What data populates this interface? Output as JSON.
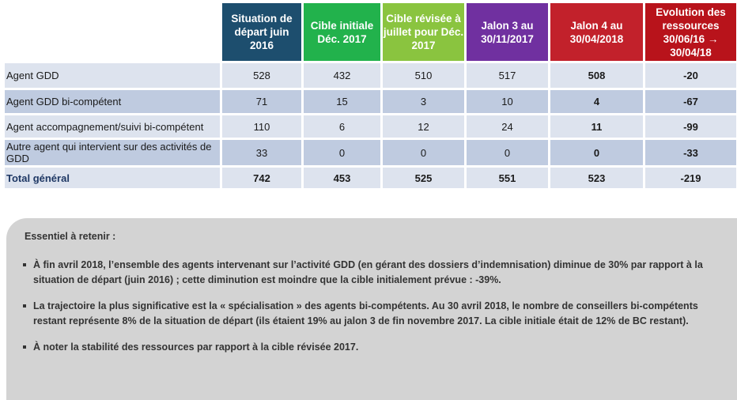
{
  "table": {
    "headers": [
      {
        "label": "Situation de départ juin 2016",
        "color": "#1d4e6e"
      },
      {
        "label": "Cible initiale Déc. 2017",
        "color": "#22b24c"
      },
      {
        "label": "Cible révisée à juillet pour Déc. 2017",
        "color": "#8ac43f"
      },
      {
        "label": "Jalon 3 au 30/11/2017",
        "color": "#7030a0"
      },
      {
        "label": "Jalon 4 au 30/04/2018",
        "color": "#c2212b"
      },
      {
        "label": "Evolution des ressources 30/06/16 → 30/04/18",
        "color": "#b8131b"
      }
    ],
    "rows": [
      {
        "label": "Agent GDD",
        "values": [
          "528",
          "432",
          "510",
          "517",
          "508",
          "-20"
        ]
      },
      {
        "label": "Agent GDD bi-compétent",
        "values": [
          "71",
          "15",
          "3",
          "10",
          "4",
          "-67"
        ]
      },
      {
        "label": "Agent accompagnement/suivi bi-compétent",
        "values": [
          "110",
          "6",
          "12",
          "24",
          "11",
          "-99"
        ]
      },
      {
        "label": "Autre agent qui intervient sur des activités de GDD",
        "values": [
          "33",
          "0",
          "0",
          "0",
          "0",
          "-33"
        ]
      },
      {
        "label": "Total général",
        "values": [
          "742",
          "453",
          "525",
          "551",
          "523",
          "-219"
        ]
      }
    ]
  },
  "summary": {
    "title": "Essentiel à retenir :",
    "bullets": [
      "À fin avril 2018, l’ensemble des agents intervenant sur l’activité GDD (en gérant des dossiers d’indemnisation) diminue de 30% par rapport à la situation de départ (juin 2016) ; cette diminution est moindre que la cible initialement prévue : -39%.",
      "La trajectoire la plus significative est la « spécialisation » des agents bi-compétents. Au 30 avril 2018, le nombre de conseillers bi-compétents restant représente 8% de la situation de départ (ils étaient 19% au jalon 3 de fin novembre 2017. La cible initiale était de 12% de BC restant).",
      "À noter la stabilité des ressources par rapport à la cible révisée 2017."
    ]
  }
}
